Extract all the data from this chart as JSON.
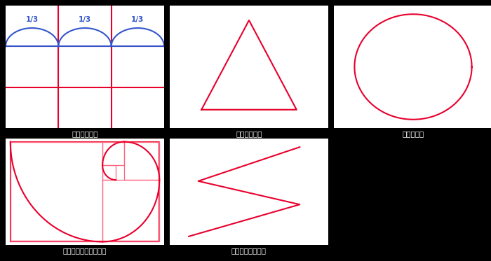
{
  "bg_color": "#000000",
  "panel_bg": "#ffffff",
  "red_color": "#e8002d",
  "pink_color": "#ff6680",
  "blue_color": "#3355cc",
  "line_width": 1.5,
  "labels": {
    "top_left": "「三分割法」",
    "top_mid": "「三角構図」",
    "top_right": "「円構図」",
    "bot_left": "「フィボナッチ構図」",
    "bot_mid": "「ジグザグ構図」"
  },
  "labels2": {
    "top_left": "【三分割法】",
    "top_mid": "【三角構図】",
    "top_right": "【円構図】",
    "bot_left": "【フィボナッチ構図】",
    "bot_mid": "【ジグザグ構図】"
  }
}
